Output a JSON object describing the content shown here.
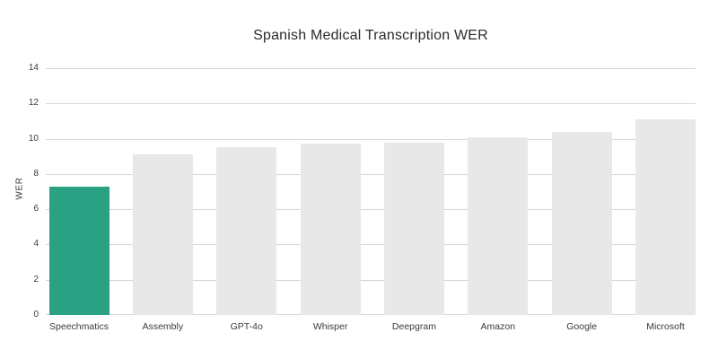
{
  "chart_data": {
    "type": "bar",
    "title": "Spanish Medical Transcription WER",
    "ylabel": "WER",
    "xlabel": "",
    "categories": [
      "Speechmatics",
      "Assembly",
      "GPT-4o",
      "Whisper",
      "Deepgram",
      "Amazon",
      "Google",
      "Microsoft"
    ],
    "values": [
      7.3,
      9.1,
      9.5,
      9.7,
      9.8,
      10.1,
      10.4,
      11.1
    ],
    "ylim": [
      0,
      14
    ],
    "yticks": [
      0,
      2,
      4,
      6,
      8,
      10,
      12,
      14
    ],
    "grid": true,
    "legend": false,
    "highlight_index": 0,
    "colors": {
      "highlight_bar": "#2aa183",
      "default_bar": "#e8e8e8",
      "gridline": "#d6d6d6",
      "text": "#3a3a3a",
      "title_text": "#2b2b2b",
      "background": "#ffffff"
    }
  }
}
